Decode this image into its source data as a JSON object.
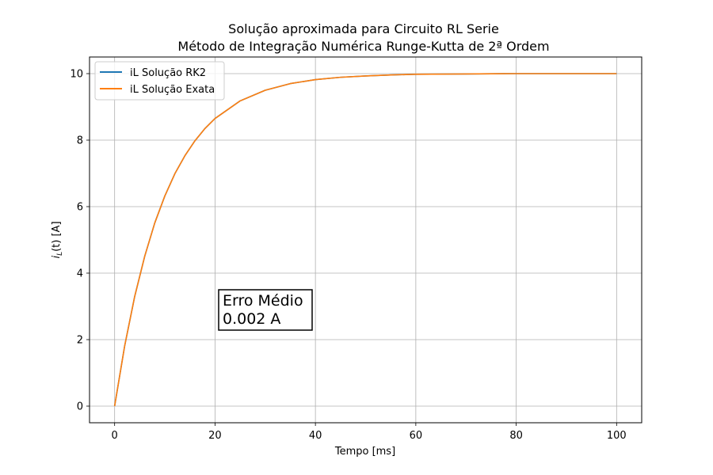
{
  "chart_data": {
    "type": "line",
    "title_lines": [
      "Solução aproximada para Circuito RL Serie",
      "Método de Integração Numérica Runge-Kutta de 2ª Ordem"
    ],
    "xlabel": "Tempo [ms]",
    "ylabel": "i_L(t) [A]",
    "ylabel_main": "i",
    "ylabel_sub": "L",
    "ylabel_rest": "(t) [A]",
    "xlim": [
      -5,
      105
    ],
    "ylim": [
      -0.5,
      10.5
    ],
    "xticks": [
      0,
      20,
      40,
      60,
      80,
      100
    ],
    "yticks": [
      0,
      2,
      4,
      6,
      8,
      10
    ],
    "grid": true,
    "legend_position": "top-left",
    "series": [
      {
        "name": "iL Solução RK2",
        "color": "#1f77b4",
        "x": [
          0,
          2,
          4,
          6,
          8,
          10,
          12,
          14,
          16,
          18,
          20,
          25,
          30,
          35,
          40,
          45,
          50,
          55,
          60,
          70,
          80,
          90,
          100
        ],
        "y": [
          0,
          1.81,
          3.3,
          4.51,
          5.51,
          6.32,
          6.99,
          7.53,
          7.98,
          8.35,
          8.65,
          9.18,
          9.5,
          9.7,
          9.82,
          9.89,
          9.93,
          9.96,
          9.98,
          9.99,
          10.0,
          10.0,
          10.0
        ]
      },
      {
        "name": "iL Solução Exata",
        "color": "#ff7f0e",
        "x": [
          0,
          2,
          4,
          6,
          8,
          10,
          12,
          14,
          16,
          18,
          20,
          25,
          30,
          35,
          40,
          45,
          50,
          55,
          60,
          70,
          80,
          90,
          100
        ],
        "y": [
          0,
          1.81,
          3.3,
          4.51,
          5.51,
          6.32,
          6.99,
          7.53,
          7.98,
          8.35,
          8.65,
          9.18,
          9.5,
          9.7,
          9.82,
          9.89,
          9.93,
          9.96,
          9.98,
          9.99,
          10.0,
          10.0,
          10.0
        ]
      }
    ],
    "annotation": {
      "lines": [
        "Erro Médio",
        "0.002 A"
      ]
    }
  }
}
